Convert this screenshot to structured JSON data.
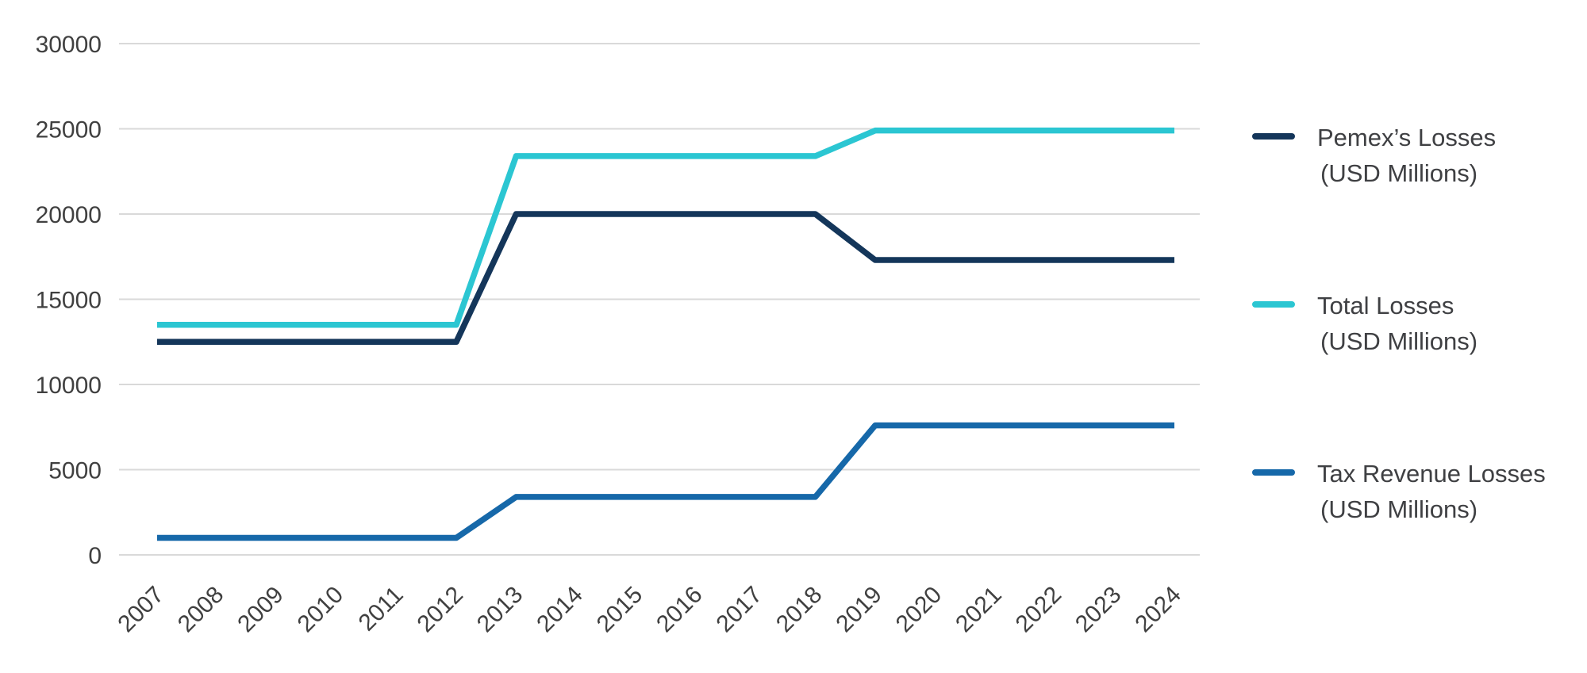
{
  "chart_data": {
    "type": "line",
    "categories": [
      "2007",
      "2008",
      "2009",
      "2010",
      "2011",
      "2012",
      "2013",
      "2014",
      "2015",
      "2016",
      "2017",
      "2018",
      "2019",
      "2020",
      "2021",
      "2022",
      "2023",
      "2024"
    ],
    "series": [
      {
        "name": "Pemex’s Losses (USD Millions)",
        "color": "#14365a",
        "values": [
          12500,
          12500,
          12500,
          12500,
          12500,
          12500,
          20000,
          20000,
          20000,
          20000,
          20000,
          20000,
          17300,
          17300,
          17300,
          17300,
          17300,
          17300
        ]
      },
      {
        "name": "Total Losses (USD Millions)",
        "color": "#2bc6d2",
        "values": [
          13500,
          13500,
          13500,
          13500,
          13500,
          13500,
          23400,
          23400,
          23400,
          23400,
          23400,
          23400,
          24900,
          24900,
          24900,
          24900,
          24900,
          24900
        ]
      },
      {
        "name": "Tax Revenue Losses (USD Millions)",
        "color": "#1668a9",
        "values": [
          1000,
          1000,
          1000,
          1000,
          1000,
          1000,
          3400,
          3400,
          3400,
          3400,
          3400,
          3400,
          7600,
          7600,
          7600,
          7600,
          7600,
          7600
        ]
      }
    ],
    "title": "",
    "xlabel": "",
    "ylabel": "",
    "ylim": [
      0,
      30000
    ],
    "yticks": [
      0,
      5000,
      10000,
      15000,
      20000,
      25000,
      30000
    ],
    "grid": true,
    "legend_position": "right"
  },
  "legend": {
    "items": [
      {
        "line1": "Pemex’s Losses",
        "line2": "(USD Millions)",
        "color": "#14365a"
      },
      {
        "line1": "Total Losses",
        "line2": "(USD Millions)",
        "color": "#2bc6d2"
      },
      {
        "line1": "Tax Revenue Losses",
        "line2": "(USD Millions)",
        "color": "#1668a9"
      }
    ]
  },
  "axis": {
    "tick_color": "#404040",
    "gridline_color": "#d9d9d9"
  }
}
